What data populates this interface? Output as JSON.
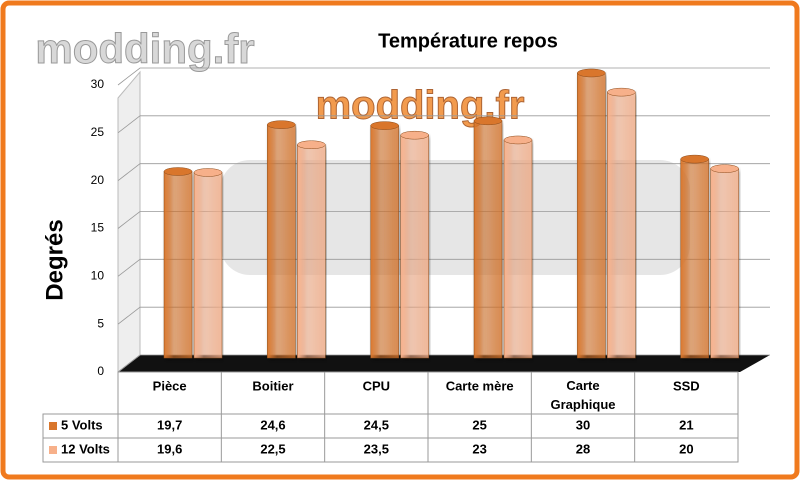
{
  "chart_data": {
    "type": "bar",
    "title": "Température repos",
    "y_label": "Degrés",
    "watermark": "modding.fr",
    "categories": [
      "Pièce",
      "Boitier",
      "CPU",
      "Carte mère",
      "Carte Graphique",
      "SSD"
    ],
    "series": [
      {
        "name": "5 Volts",
        "color": "#d9762c",
        "values": [
          19.7,
          24.6,
          24.5,
          25,
          30,
          21
        ],
        "value_labels": [
          "19,7",
          "24,6",
          "24,5",
          "25",
          "30",
          "21"
        ]
      },
      {
        "name": "12 Volts",
        "color": "#f7b08a",
        "values": [
          19.6,
          22.5,
          23.5,
          23,
          28,
          20
        ],
        "value_labels": [
          "19,6",
          "22,5",
          "23,5",
          "23",
          "28",
          "20"
        ]
      }
    ],
    "ylim": [
      0,
      30
    ],
    "yticks": [
      0,
      5,
      10,
      15,
      20,
      25,
      30
    ],
    "grid": true
  }
}
